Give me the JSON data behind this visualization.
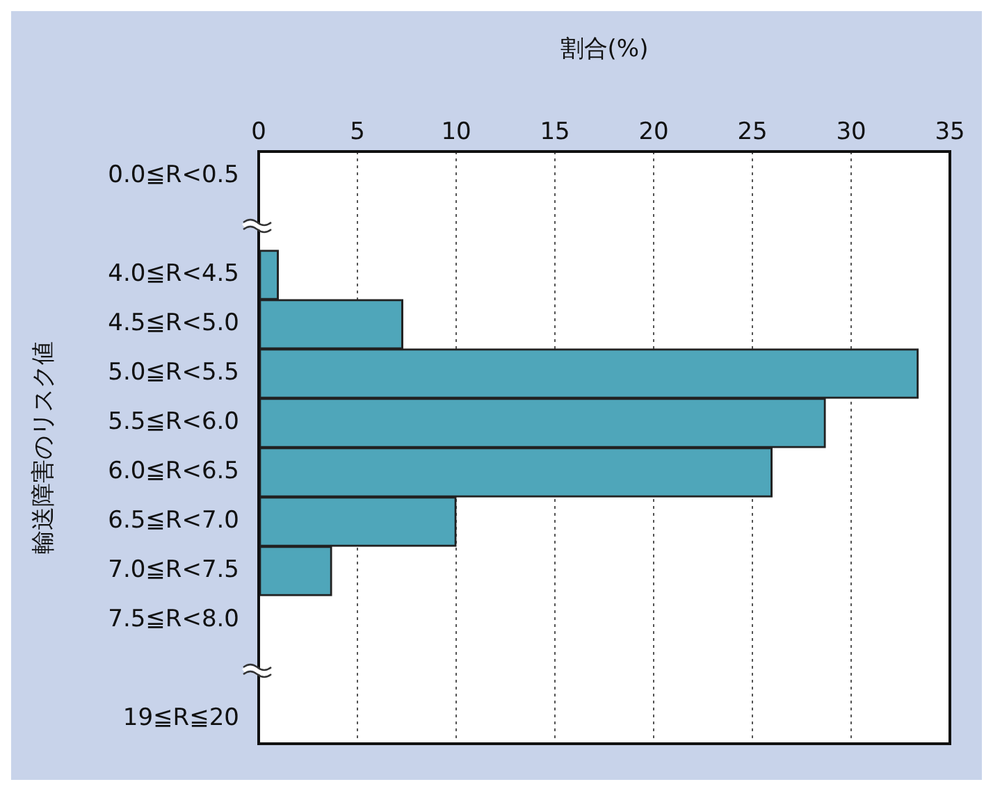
{
  "chart_data": {
    "type": "bar",
    "orientation": "horizontal",
    "xlabel": "割合(%)",
    "ylabel": "輸送障害のリスク値",
    "categories": [
      "0.0≦R<0.5",
      null,
      "4.0≦R<4.5",
      "4.5≦R<5.0",
      "5.0≦R<5.5",
      "5.5≦R<6.0",
      "6.0≦R<6.5",
      "6.5≦R<7.0",
      "7.0≦R<7.5",
      "7.5≦R<8.0",
      null,
      "19≦R≦20"
    ],
    "values": [
      0,
      null,
      1.0,
      7.3,
      33.4,
      28.7,
      26.0,
      10.0,
      3.7,
      0,
      null,
      0
    ],
    "color": "#4fa6ba",
    "xlim": [
      0,
      35
    ],
    "xticks": [
      0,
      5,
      10,
      15,
      20,
      25,
      30,
      35
    ],
    "grid": "x"
  }
}
